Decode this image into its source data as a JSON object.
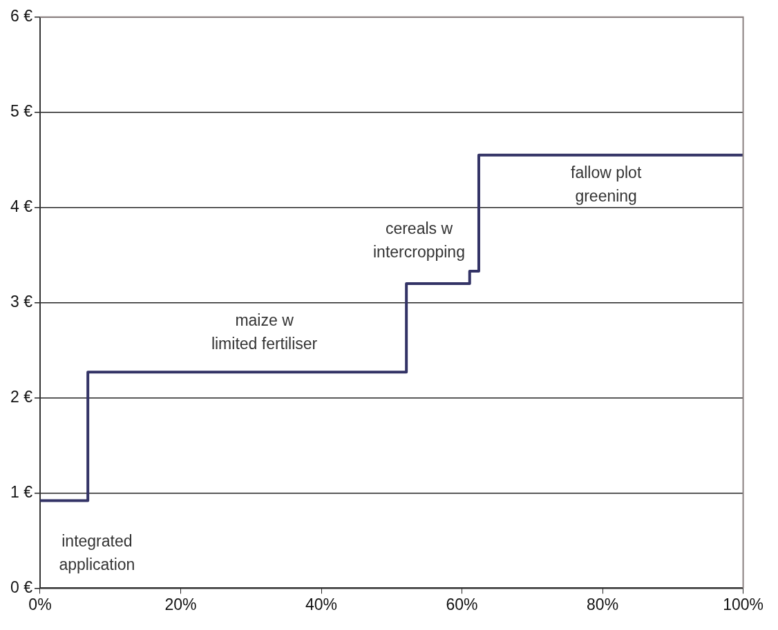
{
  "chart_data": {
    "type": "step",
    "x": [
      0,
      6.8,
      52.1,
      61.1,
      62.4,
      100
    ],
    "series": [
      {
        "color": "#333366",
        "values": [
          0.92,
          2.27,
          3.2,
          3.33,
          4.55,
          4.55
        ]
      }
    ],
    "xlim": [
      0,
      100
    ],
    "xticks": [
      {
        "value": 0,
        "label": "0%"
      },
      {
        "value": 20,
        "label": "20%"
      },
      {
        "value": 40,
        "label": "40%"
      },
      {
        "value": 60,
        "label": "60%"
      },
      {
        "value": 80,
        "label": "80%"
      },
      {
        "value": 100,
        "label": "100%"
      }
    ],
    "ylim": [
      0,
      6
    ],
    "yticks": [
      {
        "value": 0,
        "label": "0 €"
      },
      {
        "value": 1,
        "label": "1 €"
      },
      {
        "value": 2,
        "label": "2 €"
      },
      {
        "value": 3,
        "label": "3 €"
      },
      {
        "value": 4,
        "label": "4 €"
      },
      {
        "value": 5,
        "label": "5 €"
      },
      {
        "value": 6,
        "label": "6 €"
      }
    ],
    "grid": "y",
    "legend": false,
    "marker": "none",
    "line_style": "solid",
    "annotations": [
      "integrated\napplication",
      "maize w\nlimited fertiliser",
      "cereals w\nintercropping",
      "fallow plot\ngreening"
    ]
  }
}
